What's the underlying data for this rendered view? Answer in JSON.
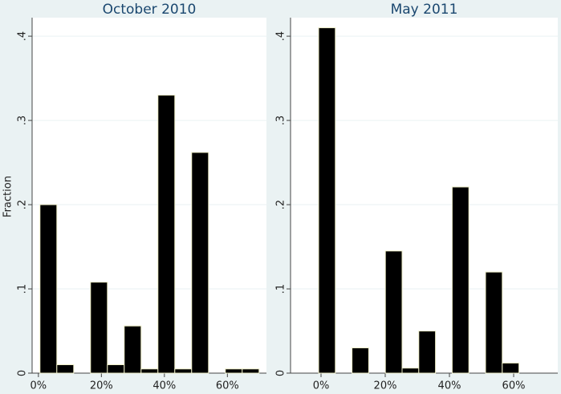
{
  "chart_data": [
    {
      "type": "histogram",
      "title": "October 2010",
      "ylabel": "Fraction",
      "bins": [
        0.5,
        5.85,
        11.2,
        16.55,
        21.9,
        27.25,
        32.6,
        37.95,
        43.3,
        48.65,
        54,
        59.35,
        64.7,
        70.05
      ],
      "values": [
        0.2,
        0.01,
        0,
        0.108,
        0.01,
        0.056,
        0.005,
        0.33,
        0.005,
        0.262,
        0,
        0.005,
        0.005
      ],
      "color": "#000000",
      "xlim": [
        -2,
        72.4
      ],
      "xticks": [
        {
          "value": 0,
          "label": "0%"
        },
        {
          "value": 20,
          "label": "20%"
        },
        {
          "value": 40,
          "label": "40%"
        },
        {
          "value": 60,
          "label": "60%"
        }
      ],
      "ylim": [
        0,
        0.422
      ],
      "yticks": [
        0,
        {
          "value": 0.1,
          "label": ".1"
        },
        {
          "value": 0.2,
          "label": ".2"
        },
        {
          "value": 0.3,
          "label": ".3"
        },
        {
          "value": 0.4,
          "label": ".4"
        }
      ],
      "grid": true
    },
    {
      "type": "histogram",
      "title": "May 2011",
      "bins": [
        -0.75,
        4.45,
        9.65,
        14.85,
        20.05,
        25.25,
        30.45,
        35.65,
        40.85,
        46.05,
        51.25,
        56.45,
        61.65
      ],
      "values": [
        0.41,
        0,
        0.03,
        0,
        0.145,
        0.006,
        0.05,
        0,
        0.221,
        0,
        0.12,
        0.012
      ],
      "color": "#000000",
      "xlim": [
        -9.5,
        73.75
      ],
      "xticks": [
        {
          "value": 0,
          "label": "0%"
        },
        {
          "value": 20,
          "label": "20%"
        },
        {
          "value": 40,
          "label": "40%"
        },
        {
          "value": 60,
          "label": "60%"
        }
      ],
      "ylim": [
        0,
        0.422
      ],
      "yticks": [
        0,
        {
          "value": 0.1,
          "label": ".1"
        },
        {
          "value": 0.2,
          "label": ".2"
        },
        {
          "value": 0.3,
          "label": ".3"
        },
        {
          "value": 0.4,
          "label": ".4"
        }
      ],
      "grid": true
    }
  ]
}
